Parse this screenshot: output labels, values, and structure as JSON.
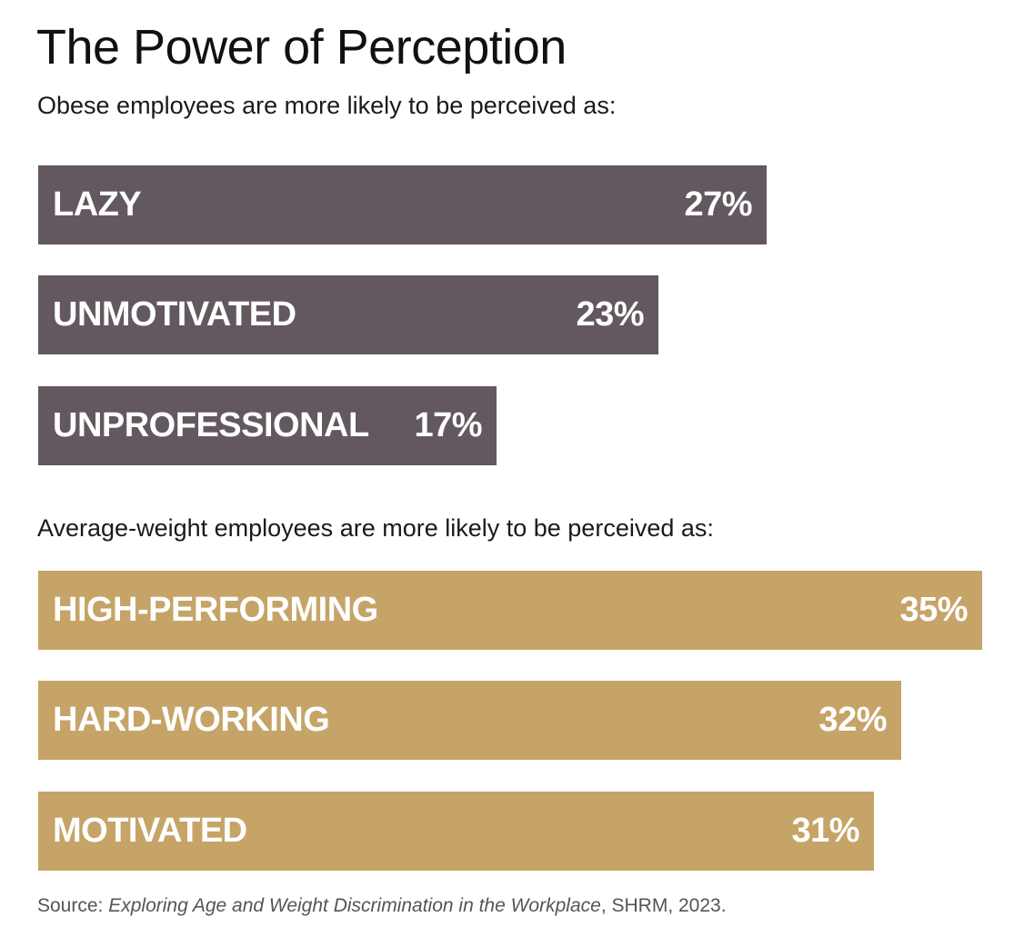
{
  "title": "The Power of Perception",
  "colors": {
    "obese": "#635860",
    "average": "#c6a468"
  },
  "chart_data": [
    {
      "type": "bar",
      "orientation": "horizontal",
      "title": "Obese employees are more likely to be perceived as:",
      "categories": [
        "LAZY",
        "UNMOTIVATED",
        "UNPROFESSIONAL"
      ],
      "values": [
        27,
        23,
        17
      ],
      "value_labels": [
        "27%",
        "23%",
        "17%"
      ],
      "unit": "%",
      "color": "#635860"
    },
    {
      "type": "bar",
      "orientation": "horizontal",
      "title": "Average-weight employees are more likely to be perceived as:",
      "categories": [
        "HIGH-PERFORMING",
        "HARD-WORKING",
        "MOTIVATED"
      ],
      "values": [
        35,
        32,
        31
      ],
      "value_labels": [
        "35%",
        "32%",
        "31%"
      ],
      "unit": "%",
      "color": "#c6a468"
    }
  ],
  "source": {
    "prefix": "Source: ",
    "work": "Exploring Age and Weight Discrimination in the Workplace",
    "suffix": ", SHRM, 2023."
  }
}
